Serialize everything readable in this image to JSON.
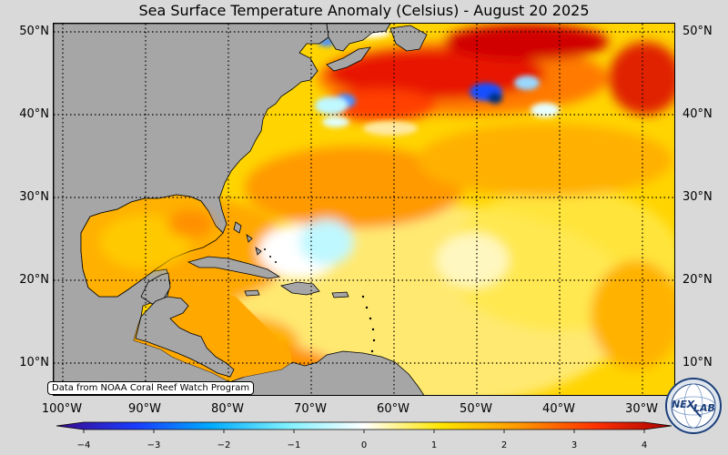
{
  "title": "Sea Surface Temperature Anomaly (Celsius) - August 20 2025",
  "latitude_labels": [
    "50°N",
    "40°N",
    "30°N",
    "20°N",
    "10°N"
  ],
  "longitude_labels": [
    "100°W",
    "90°W",
    "80°W",
    "70°W",
    "60°W",
    "50°W",
    "40°W",
    "30°W"
  ],
  "credit": "Data from NOAA Coral Reef Watch Program",
  "colorbar": {
    "ticks": [
      "−4",
      "−3",
      "−2",
      "−1",
      "0",
      "1",
      "2",
      "3",
      "4"
    ],
    "range": [
      -4,
      4
    ],
    "colors": [
      "#3a0a8c",
      "#1a3cff",
      "#00aaff",
      "#7ff0ff",
      "#ffffff",
      "#ffe600",
      "#ff9900",
      "#ff3300",
      "#a80000"
    ]
  },
  "map_colors": {
    "land": "#a6a6a6",
    "ocean_warm": "#ffd400",
    "ocean_hot": "#ff6a00",
    "ocean_very_hot": "#d40000",
    "ocean_cool": "#bff8ff",
    "ocean_cold": "#1450ff"
  },
  "logo": {
    "icon": "nexlab-globe-icon",
    "text_left": "NEX",
    "text_right": "LAB"
  }
}
